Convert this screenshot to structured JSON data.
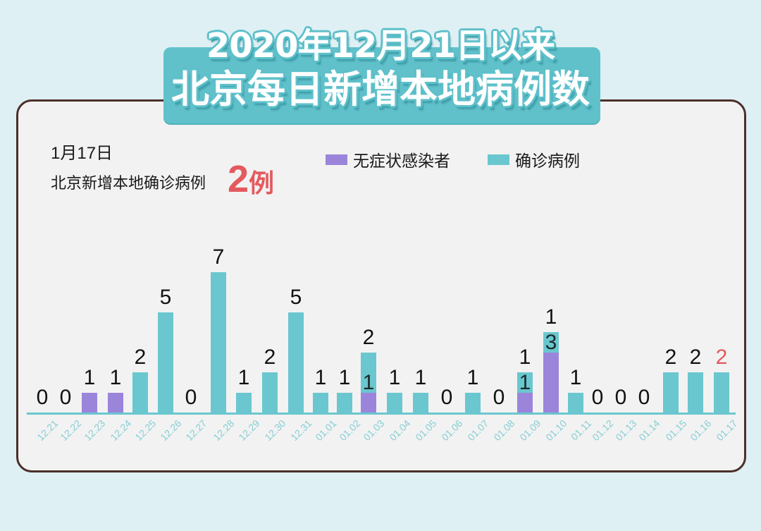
{
  "title": {
    "line1": "2020年12月21日以来",
    "line2": "北京每日新增本地病例数"
  },
  "summary": {
    "date": "1月17日",
    "headline": "北京新增本地确诊病例",
    "count": "2",
    "unit": "例"
  },
  "legend": [
    {
      "label": "无症状感染者",
      "color": "#9b85db"
    },
    {
      "label": "确诊病例",
      "color": "#6ac7cf"
    }
  ],
  "colors": {
    "asymptomatic": "#9b85db",
    "confirmed": "#6ac7cf",
    "highlight": "#e05a5f",
    "axis": "#6ac7cf",
    "tick_label": "#86ced3"
  },
  "chart_data": {
    "type": "bar",
    "stacked": true,
    "title": "2020年12月21日以来 北京每日新增本地病例数",
    "xlabel": "",
    "ylabel": "",
    "grid": false,
    "legend_position": "top",
    "categories": [
      "12.21",
      "12.22",
      "12.23",
      "12.24",
      "12.25",
      "12.26",
      "12.27",
      "12.28",
      "12.29",
      "12.30",
      "12.31",
      "01.01",
      "01.02",
      "01.03",
      "01.04",
      "01.05",
      "01.06",
      "01.07",
      "01.08",
      "01.09",
      "01.10",
      "01.11",
      "01.12",
      "01.13",
      "01.14",
      "01.15",
      "01.16",
      "01.17"
    ],
    "series": [
      {
        "name": "无症状感染者",
        "color": "#9b85db",
        "values": [
          0,
          0,
          1,
          1,
          0,
          0,
          0,
          0,
          0,
          0,
          0,
          0,
          0,
          1,
          0,
          0,
          0,
          0,
          0,
          1,
          3,
          0,
          0,
          0,
          0,
          0,
          0,
          0
        ]
      },
      {
        "name": "确诊病例",
        "color": "#6ac7cf",
        "values": [
          0,
          0,
          0,
          0,
          2,
          5,
          0,
          7,
          1,
          2,
          5,
          1,
          1,
          2,
          1,
          1,
          0,
          1,
          0,
          1,
          1,
          1,
          0,
          0,
          0,
          2,
          2,
          2
        ]
      }
    ],
    "value_labels": [
      "0",
      "0",
      "1",
      "1",
      "2",
      "5",
      "0",
      "7",
      "1",
      "2",
      "5",
      "1",
      "1",
      "2",
      "1",
      "1",
      "0",
      "1",
      "0",
      "1",
      "1",
      "1",
      "0",
      "0",
      "0",
      "2",
      "2",
      "2"
    ],
    "inner_labels": [
      "",
      "",
      "",
      "",
      "",
      "",
      "",
      "",
      "",
      "",
      "",
      "",
      "",
      "1",
      "",
      "",
      "",
      "",
      "",
      "1",
      "3",
      "",
      "",
      "",
      "",
      "",
      "",
      ""
    ],
    "highlight_index": 27,
    "annotation": "1月17日 北京新增本地确诊病例 2例"
  }
}
